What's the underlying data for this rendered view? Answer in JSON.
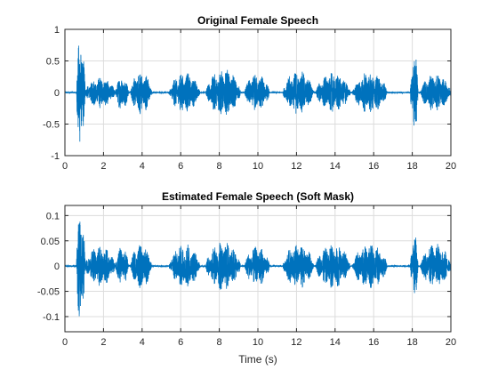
{
  "colors": {
    "line": "#0072BD",
    "grid": "#dcdcdc",
    "axes": "#262626"
  },
  "chart_data": [
    {
      "type": "line",
      "title": "Original Female Speech",
      "xlabel": "",
      "ylabel": "",
      "xlim": [
        0,
        20
      ],
      "ylim": [
        -1,
        1
      ],
      "xticks": [
        0,
        2,
        4,
        6,
        8,
        10,
        12,
        14,
        16,
        18,
        20
      ],
      "xtick_labels": [
        "0",
        "2",
        "4",
        "6",
        "8",
        "10",
        "12",
        "14",
        "16",
        "18",
        "20"
      ],
      "yticks": [
        -1,
        -0.5,
        0,
        0.5,
        1
      ],
      "ytick_labels": [
        "-1",
        "-0.5",
        "0",
        "0.5",
        "1"
      ],
      "grid": true,
      "series": [
        {
          "style": "speech waveform",
          "segments": [
            {
              "x": [
                0.6,
                1.05
              ],
              "peak": 0.95
            },
            {
              "x": [
                1.05,
                2.6
              ],
              "peak": 0.25
            },
            {
              "x": [
                2.6,
                3.3
              ],
              "peak": 0.28
            },
            {
              "x": [
                3.4,
                4.5
              ],
              "peak": 0.35
            },
            {
              "x": [
                5.4,
                7.0
              ],
              "peak": 0.32
            },
            {
              "x": [
                7.3,
                9.1
              ],
              "peak": 0.38
            },
            {
              "x": [
                9.3,
                10.6
              ],
              "peak": 0.3
            },
            {
              "x": [
                11.3,
                12.9
              ],
              "peak": 0.35
            },
            {
              "x": [
                13.0,
                14.8
              ],
              "peak": 0.32
            },
            {
              "x": [
                14.9,
                16.7
              ],
              "peak": 0.33
            },
            {
              "x": [
                17.9,
                18.3
              ],
              "peak": 0.65
            },
            {
              "x": [
                18.4,
                20.0
              ],
              "peak": 0.3
            }
          ]
        }
      ]
    },
    {
      "type": "line",
      "title": "Estimated Female Speech (Soft Mask)",
      "xlabel": "Time (s)",
      "ylabel": "",
      "xlim": [
        0,
        20
      ],
      "ylim": [
        -0.13,
        0.12
      ],
      "xticks": [
        0,
        2,
        4,
        6,
        8,
        10,
        12,
        14,
        16,
        18,
        20
      ],
      "xtick_labels": [
        "0",
        "2",
        "4",
        "6",
        "8",
        "10",
        "12",
        "14",
        "16",
        "18",
        "20"
      ],
      "yticks": [
        -0.1,
        -0.05,
        0,
        0.05,
        0.1
      ],
      "ytick_labels": [
        "-0.1",
        "-0.05",
        "0",
        "0.05",
        "0.1"
      ],
      "grid": true,
      "series": [
        {
          "style": "speech waveform",
          "segments": [
            {
              "x": [
                0.6,
                1.05
              ],
              "peak": 0.12
            },
            {
              "x": [
                1.05,
                2.6
              ],
              "peak": 0.04
            },
            {
              "x": [
                2.6,
                3.3
              ],
              "peak": 0.04
            },
            {
              "x": [
                3.4,
                4.5
              ],
              "peak": 0.045
            },
            {
              "x": [
                5.4,
                7.0
              ],
              "peak": 0.045
            },
            {
              "x": [
                7.3,
                9.1
              ],
              "peak": 0.05
            },
            {
              "x": [
                9.3,
                10.6
              ],
              "peak": 0.04
            },
            {
              "x": [
                11.3,
                12.9
              ],
              "peak": 0.045
            },
            {
              "x": [
                13.0,
                14.8
              ],
              "peak": 0.045
            },
            {
              "x": [
                14.9,
                16.7
              ],
              "peak": 0.045
            },
            {
              "x": [
                17.9,
                18.3
              ],
              "peak": 0.065
            },
            {
              "x": [
                18.4,
                20.0
              ],
              "peak": 0.045
            }
          ]
        }
      ]
    }
  ]
}
